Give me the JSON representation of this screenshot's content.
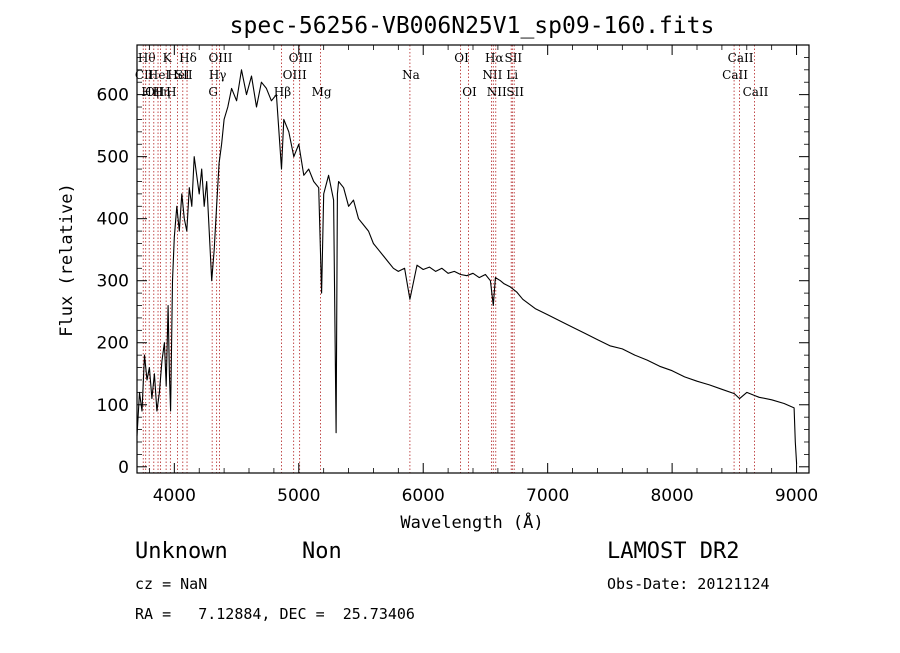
{
  "chart_data": {
    "type": "line",
    "title": "spec-56256-VB006N25V1_sp09-160.fits",
    "xlabel": "Wavelength (Å)",
    "ylabel": "Flux (relative)",
    "xlim": [
      3700,
      9100
    ],
    "ylim": [
      -10,
      680
    ],
    "xticks": [
      4000,
      5000,
      6000,
      7000,
      8000,
      9000
    ],
    "yticks": [
      0,
      100,
      200,
      300,
      400,
      500,
      600
    ],
    "grid": false,
    "series": [
      {
        "x": [
          3700,
          3720,
          3740,
          3760,
          3780,
          3800,
          3820,
          3840,
          3860,
          3880,
          3900,
          3920,
          3935,
          3950,
          3960,
          3970,
          3985,
          4000,
          4020,
          4040,
          4060,
          4080,
          4100,
          4120,
          4140,
          4160,
          4180,
          4200,
          4220,
          4240,
          4260,
          4280,
          4300,
          4320,
          4340,
          4360,
          4380,
          4400,
          4430,
          4460,
          4500,
          4540,
          4580,
          4620,
          4660,
          4700,
          4740,
          4780,
          4820,
          4861,
          4880,
          4920,
          4960,
          5000,
          5040,
          5080,
          5120,
          5160,
          5183,
          5200,
          5240,
          5280,
          5300,
          5310,
          5320,
          5360,
          5400,
          5440,
          5480,
          5520,
          5560,
          5600,
          5640,
          5680,
          5720,
          5760,
          5800,
          5850,
          5893,
          5950,
          6000,
          6050,
          6100,
          6150,
          6200,
          6250,
          6300,
          6350,
          6400,
          6450,
          6500,
          6540,
          6563,
          6580,
          6620,
          6650,
          6700,
          6750,
          6800,
          6900,
          7000,
          7100,
          7200,
          7300,
          7400,
          7500,
          7600,
          7700,
          7800,
          7900,
          8000,
          8100,
          8200,
          8300,
          8400,
          8500,
          8542,
          8600,
          8662,
          8700,
          8800,
          8900,
          8980,
          8990,
          9000
        ],
        "y": [
          50,
          120,
          90,
          180,
          140,
          160,
          110,
          150,
          90,
          120,
          170,
          200,
          130,
          260,
          150,
          90,
          300,
          370,
          420,
          380,
          440,
          400,
          380,
          450,
          420,
          500,
          470,
          440,
          480,
          420,
          460,
          380,
          300,
          350,
          420,
          490,
          520,
          560,
          580,
          610,
          590,
          640,
          600,
          630,
          580,
          620,
          610,
          590,
          600,
          480,
          560,
          540,
          500,
          520,
          470,
          480,
          460,
          450,
          280,
          440,
          470,
          430,
          55,
          440,
          460,
          450,
          420,
          430,
          400,
          390,
          380,
          360,
          350,
          340,
          330,
          320,
          315,
          320,
          270,
          325,
          318,
          322,
          315,
          320,
          312,
          315,
          310,
          308,
          312,
          305,
          310,
          300,
          260,
          305,
          300,
          295,
          290,
          282,
          270,
          255,
          245,
          235,
          225,
          215,
          205,
          195,
          190,
          180,
          172,
          162,
          155,
          145,
          138,
          132,
          125,
          118,
          110,
          120,
          115,
          112,
          108,
          102,
          95,
          40,
          5
        ]
      }
    ],
    "line_markers": [
      {
        "w": 3750,
        "label": "CII",
        "row": 2
      },
      {
        "w": 3770,
        "label": "Hθ",
        "row": 1
      },
      {
        "w": 3798,
        "label": "Hη",
        "row": 3
      },
      {
        "w": 3835,
        "label": "OII",
        "row": 3
      },
      {
        "w": 3869,
        "label": "HeI",
        "row": 2
      },
      {
        "w": 3889,
        "label": "Hη",
        "row": 3
      },
      {
        "w": 3934,
        "label": "K",
        "row": 1
      },
      {
        "w": 3968,
        "label": "H",
        "row": 3
      },
      {
        "w": 4026,
        "label": "HeI",
        "row": 2
      },
      {
        "w": 4068,
        "label": "SII",
        "row": 2
      },
      {
        "w": 4102,
        "label": "Hδ",
        "row": 1
      },
      {
        "w": 4304,
        "label": "G",
        "row": 3
      },
      {
        "w": 4340,
        "label": "Hγ",
        "row": 2
      },
      {
        "w": 4363,
        "label": "OIII",
        "row": 1
      },
      {
        "w": 4861,
        "label": "Hβ",
        "row": 3
      },
      {
        "w": 4959,
        "label": "OIII",
        "row": 2
      },
      {
        "w": 5007,
        "label": "OIII",
        "row": 1
      },
      {
        "w": 5175,
        "label": "Mg",
        "row": 3
      },
      {
        "w": 5893,
        "label": "Na",
        "row": 2
      },
      {
        "w": 6300,
        "label": "OI",
        "row": 1
      },
      {
        "w": 6364,
        "label": "OI",
        "row": 3
      },
      {
        "w": 6548,
        "label": "NII",
        "row": 2
      },
      {
        "w": 6563,
        "label": "Hα",
        "row": 1
      },
      {
        "w": 6583,
        "label": "NII",
        "row": 3
      },
      {
        "w": 6707,
        "label": "Li",
        "row": 2
      },
      {
        "w": 6716,
        "label": "SII",
        "row": 1
      },
      {
        "w": 6731,
        "label": "SII",
        "row": 3
      },
      {
        "w": 8498,
        "label": "CaII",
        "row": 2
      },
      {
        "w": 8542,
        "label": "CaII",
        "row": 1
      },
      {
        "w": 8662,
        "label": "CaII",
        "row": 3
      }
    ],
    "line_marker_color": "#b22222",
    "line_color": "#000000"
  },
  "info": {
    "class_label": "Unknown",
    "subclass_label": "Non",
    "survey": "LAMOST DR2",
    "cz": "cz = NaN",
    "obs_date": "Obs-Date: 20121124",
    "coords": "RA =   7.12884, DEC =  25.73406"
  }
}
